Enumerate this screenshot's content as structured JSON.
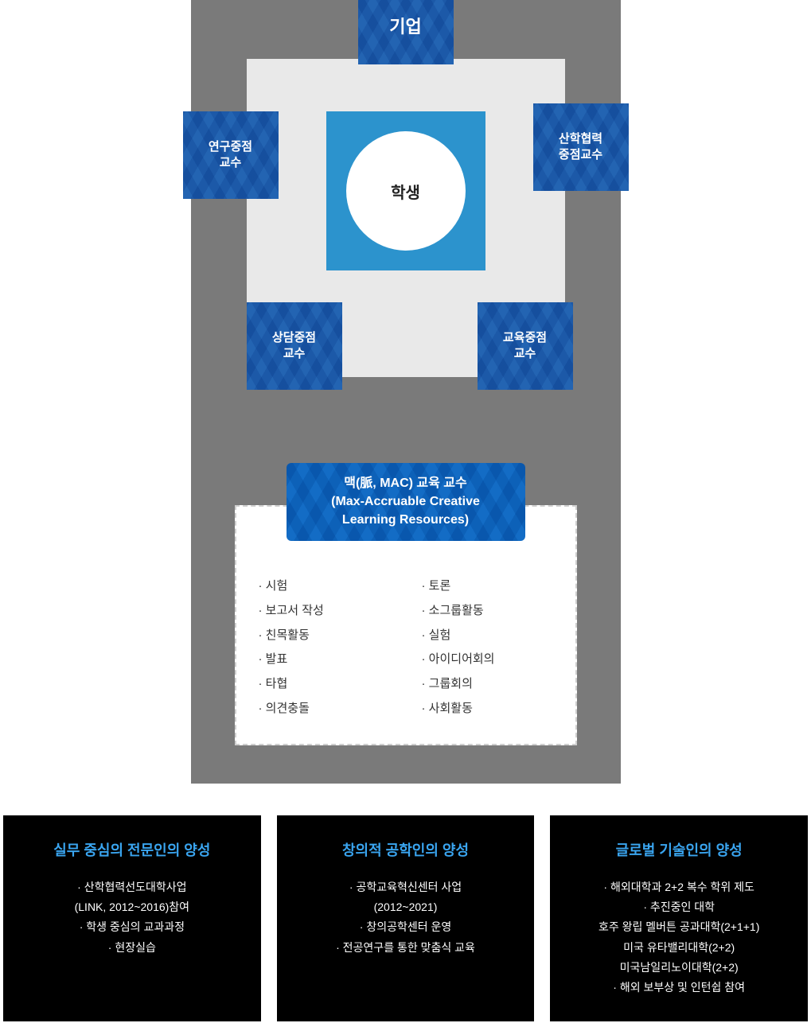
{
  "diagram": {
    "center_label": "학생",
    "nodes": {
      "top": "기업",
      "left": "연구중점\n교수",
      "right": "산학협력\n중점교수",
      "bottom_left": "상담중점\n교수",
      "bottom_right": "교육중점\n교수"
    },
    "core_box_color": "#2c93cd",
    "frame_bg": "#e9e9e9",
    "outer_bg": "#7a7a7a",
    "node_color_a": "#5fa0d5",
    "node_color_b": "#4a8ec9"
  },
  "mac": {
    "title_line1": "맥(脈, MAC) 교육 교수",
    "title_line2": "(Max-Accruable Creative",
    "title_line3": "Learning Resources)",
    "title_bg_a": "#45a6e0",
    "title_bg_b": "#2f95d2",
    "left_items": [
      "시험",
      "보고서 작성",
      "친목활동",
      "발표",
      "타협",
      "의견충돌"
    ],
    "right_items": [
      "토론",
      "소그룹활동",
      "실험",
      "아이디어회의",
      "그룹회의",
      "사회활동"
    ]
  },
  "panels": [
    {
      "title": "실무 중심의 전문인의 양성",
      "lines": [
        {
          "t": "산학협력선도대학사업",
          "b": true
        },
        {
          "t": "(LINK, 2012~2016)참여",
          "b": false
        },
        {
          "t": "학생 중심의 교과과정",
          "b": true
        },
        {
          "t": "현장실습",
          "b": true
        }
      ]
    },
    {
      "title": "창의적 공학인의 양성",
      "lines": [
        {
          "t": "공학교육혁신센터 사업",
          "b": true
        },
        {
          "t": "(2012~2021)",
          "b": false
        },
        {
          "t": "창의공학센터 운영",
          "b": true
        },
        {
          "t": "전공연구를 통한 맞춤식 교육",
          "b": true
        }
      ]
    },
    {
      "title": "글로벌 기술인의 양성",
      "lines": [
        {
          "t": "해외대학과 2+2 복수 학위 제도",
          "b": true
        },
        {
          "t": "추진중인 대학",
          "b": true
        },
        {
          "t": "호주 왕립 멜버튼 공과대학(2+1+1)",
          "b": false
        },
        {
          "t": "미국 유타밸리대학(2+2)",
          "b": false
        },
        {
          "t": "미국남일리노이대학(2+2)",
          "b": false
        },
        {
          "t": "해외 보부상 및 인턴쉽 참여",
          "b": true
        }
      ]
    }
  ],
  "panel_title_color": "#3aa5f0",
  "panel_bg": "#000000"
}
